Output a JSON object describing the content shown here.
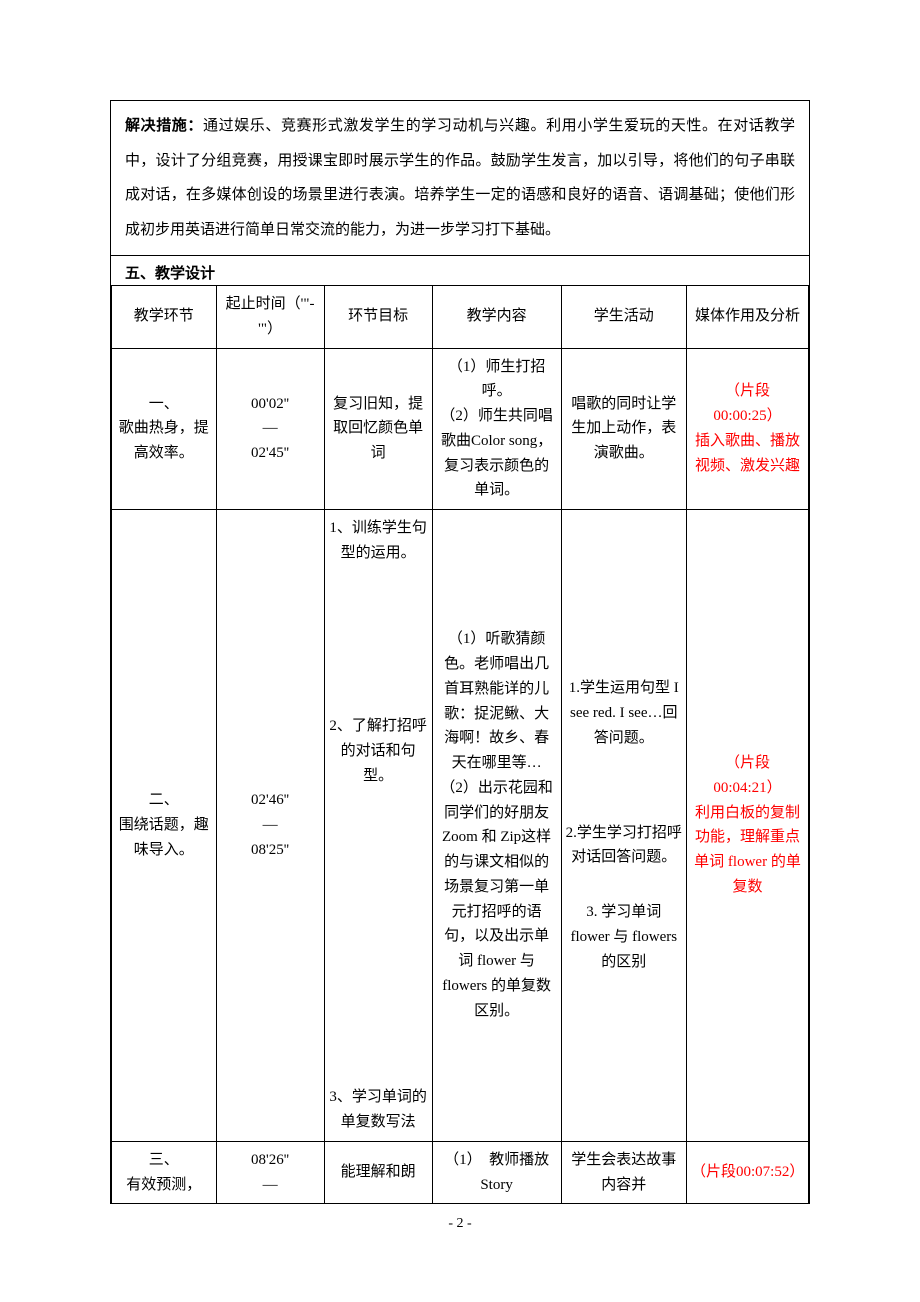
{
  "solution": {
    "label": "解决措施：",
    "body": "通过娱乐、竞赛形式激发学生的学习动机与兴趣。利用小学生爱玩的天性。在对话教学中，设计了分组竞赛，用授课宝即时展示学生的作品。鼓励学生发言，加以引导，将他们的句子串联成对话，在多媒体创设的场景里进行表演。培养学生一定的语感和良好的语音、语调基础；使他们形成初步用英语进行简单日常交流的能力，为进一步学习打下基础。"
  },
  "section5": "五、教学设计",
  "headers": {
    "h1": "教学环节",
    "h2": "起止时间（'\"- '\"）",
    "h3": "环节目标",
    "h4": "教学内容",
    "h5": "学生活动",
    "h6": "媒体作用及分析"
  },
  "row1": {
    "stage": "一、\n歌曲热身，提高效率。",
    "time": "00'02''\n—\n02'45''",
    "goal": "复习旧知，提取回忆颜色单词",
    "content": "（1）师生打招呼。\n（2）师生共同唱歌曲Color song，复习表示颜色的单词。",
    "activity": "唱歌的同时让学生加上动作，表演歌曲。",
    "media": "（片段00:00:25）\n插入歌曲、播放视频、激发兴趣"
  },
  "row2": {
    "stage": "二、\n围绕话题，趣味导入。",
    "time": "02'46''\n—\n08'25''",
    "goal": "1、训练学生句型的运用。\n\n\n\n2、了解打招呼的对话和句型。\n\n\n\n\n\n\n3、学习单词的单复数写法",
    "content": "（1）听歌猜颜色。老师唱出几首耳熟能详的儿歌：捉泥鳅、大海啊！故乡、春天在哪里等…\n（2）出示花园和同学们的好朋友Zoom 和 Zip这样的与课文相似的场景复习第一单元打招呼的语句，以及出示单词 flower 与 flowers 的单复数区别。",
    "activity1": "1.学生运用句型 I see red. I see…回答问题。",
    "activity2": "2.学生学习打招呼对话回答问题。",
    "activity3": "3.  学习单词 flower 与 flowers 的区别",
    "media": "（片段00:04:21）\n利用白板的复制功能，理解重点单词 flower 的单复数"
  },
  "row3": {
    "stage": "三、\n有效预测，",
    "time": "08'26''\n—",
    "goal": "能理解和朗",
    "content": "（1）　教师播放 Story",
    "activity": "学生会表达故事内容并",
    "media": "（片段00:07:52）"
  },
  "pagenum": "- 2 -",
  "colors": {
    "red": "#ff0000",
    "border": "#000000",
    "bg": "#ffffff"
  },
  "fontsizes": {
    "body": 15,
    "pagenum": 14
  },
  "lineheights": {
    "solution": 2.3,
    "cell": 1.65
  }
}
